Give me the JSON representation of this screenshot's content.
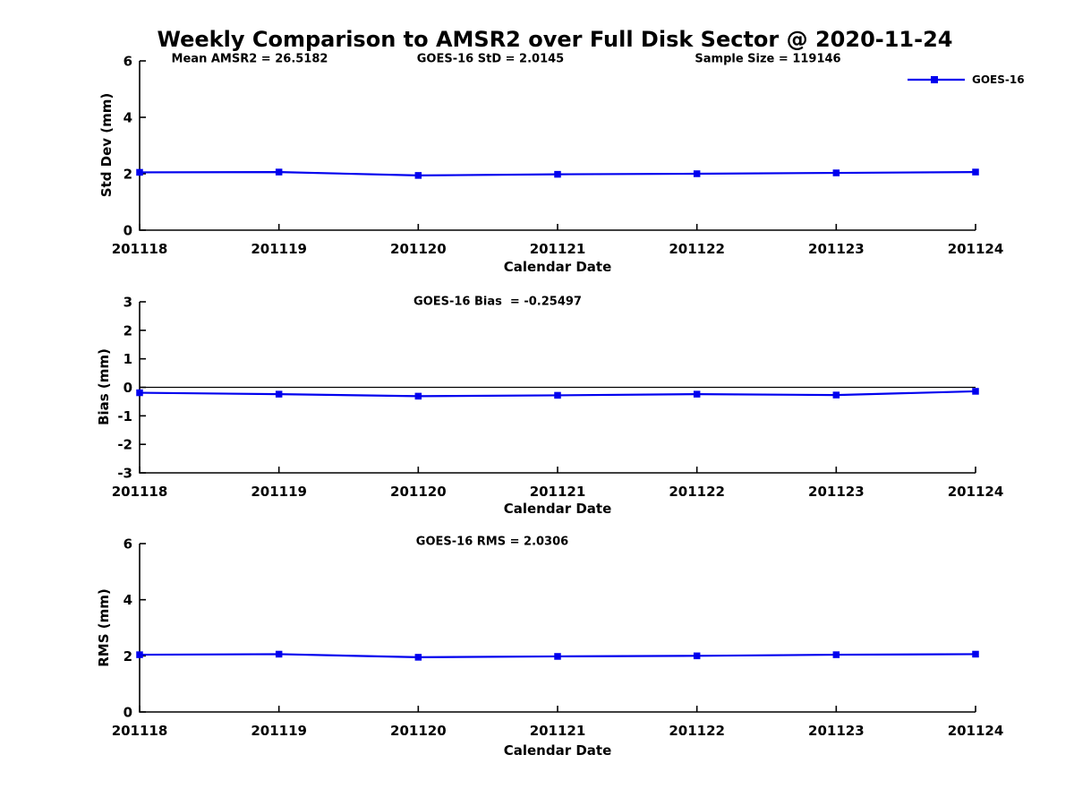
{
  "title": "Weekly Comparison to AMSR2 over Full Disk Sector @ 2020-11-24",
  "legend": {
    "label": "GOES-16"
  },
  "colors": {
    "line_color": "#0000EE",
    "axis_color": "#000000",
    "text_color": "#000000",
    "background": "#FFFFFF"
  },
  "chart_data": [
    {
      "type": "line",
      "id": "std-dev",
      "annotations": [
        "Mean AMSR2 = 26.5182",
        "GOES-16 StD = 2.0145",
        "Sample Size = 119146"
      ],
      "ylabel": "Std Dev (mm)",
      "xlabel": "Calendar Date",
      "ylim": [
        0,
        6
      ],
      "ytick_values": [
        0,
        2,
        4,
        6
      ],
      "yticks": [
        "0",
        "2",
        "4",
        "6"
      ],
      "categories": [
        "201118",
        "201119",
        "201120",
        "201121",
        "201122",
        "201123",
        "201124"
      ],
      "series": [
        {
          "name": "GOES-16",
          "values": [
            2.05,
            2.06,
            1.94,
            1.98,
            2.0,
            2.03,
            2.06
          ]
        }
      ],
      "zero_line": false,
      "grid": false,
      "legend_position": "top-right-outside"
    },
    {
      "type": "line",
      "id": "bias",
      "annotations": [
        "GOES-16 Bias  = -0.25497"
      ],
      "ylabel": "Bias (mm)",
      "xlabel": "Calendar Date",
      "ylim": [
        -3,
        3
      ],
      "ytick_values": [
        -3,
        -2,
        -1,
        0,
        1,
        2,
        3
      ],
      "yticks": [
        "-3",
        "-2",
        "-1",
        "0",
        "1",
        "2",
        "3"
      ],
      "categories": [
        "201118",
        "201119",
        "201120",
        "201121",
        "201122",
        "201123",
        "201124"
      ],
      "series": [
        {
          "name": "GOES-16",
          "values": [
            -0.19,
            -0.24,
            -0.31,
            -0.28,
            -0.24,
            -0.27,
            -0.14
          ]
        }
      ],
      "zero_line": true,
      "grid": false,
      "legend_position": "none"
    },
    {
      "type": "line",
      "id": "rms",
      "annotations": [
        "GOES-16 RMS = 2.0306"
      ],
      "ylabel": "RMS (mm)",
      "xlabel": "Calendar Date",
      "ylim": [
        0,
        6
      ],
      "ytick_values": [
        0,
        2,
        4,
        6
      ],
      "yticks": [
        "0",
        "2",
        "4",
        "6"
      ],
      "categories": [
        "201118",
        "201119",
        "201120",
        "201121",
        "201122",
        "201123",
        "201124"
      ],
      "series": [
        {
          "name": "GOES-16",
          "values": [
            2.04,
            2.06,
            1.95,
            1.98,
            2.0,
            2.04,
            2.06
          ]
        }
      ],
      "zero_line": false,
      "grid": false,
      "legend_position": "none"
    }
  ]
}
